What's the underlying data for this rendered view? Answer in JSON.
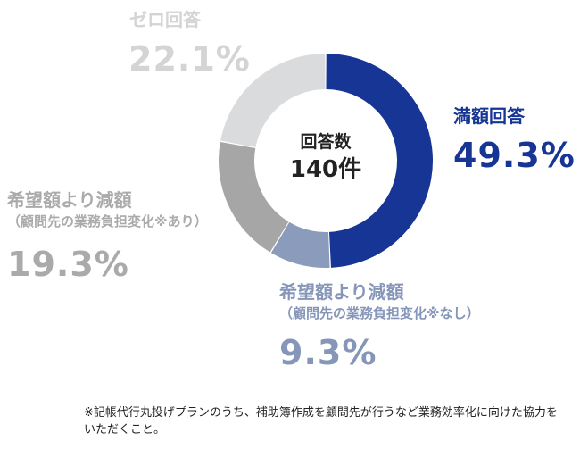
{
  "chart_data": {
    "type": "pie",
    "variant": "donut",
    "center": {
      "title": "回答数",
      "total": "140件"
    },
    "slices": [
      {
        "key": "full",
        "label": "満額回答",
        "sublabel": "",
        "value": 49.3,
        "value_text": "49.3%",
        "color": "#163594"
      },
      {
        "key": "reduced_none",
        "label": "希望額より減額",
        "sublabel": "（顧問先の業務負担変化※なし）",
        "value": 9.3,
        "value_text": "9.3%",
        "color": "#8a9bbb"
      },
      {
        "key": "reduced_some",
        "label": "希望額より減額",
        "sublabel": "（顧問先の業務負担変化※あり）",
        "value": 19.3,
        "value_text": "19.3%",
        "color": "#a6a6a6"
      },
      {
        "key": "zero",
        "label": "ゼロ回答",
        "sublabel": "",
        "value": 22.1,
        "value_text": "22.1%",
        "color": "#dadbdc"
      }
    ]
  },
  "footnote": "※記帳代行丸投げプランのうち、補助簿作成を顧問先が行うなど業務効率化に向けた協力をいただくこと。"
}
